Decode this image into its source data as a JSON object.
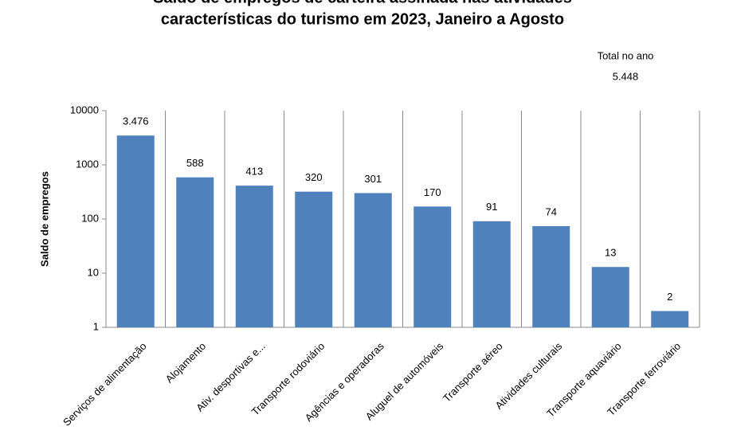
{
  "chart_data": {
    "type": "bar",
    "title": [
      "Saldo de empregos de carteira assinada nas atividades",
      "características do turismo em 2023, Janeiro a Agosto"
    ],
    "annotation": [
      "Total no ano",
      "5.448"
    ],
    "y_label": "Saldo de empregos",
    "categories": [
      "Serviços de alimentação",
      "Alojamento",
      "Ativ. desportivas e...",
      "Transporte rodoviário",
      "Agências e operadoras",
      "Aluguel de automóveis",
      "Transporte aéreo",
      "Atividades culturais",
      "Transporte aquaviário",
      "Transporte ferroviário"
    ],
    "values": [
      3476,
      588,
      413,
      320,
      301,
      170,
      91,
      74,
      13,
      2
    ],
    "value_labels": [
      "3.476",
      "588",
      "413",
      "320",
      "301",
      "170",
      "91",
      "74",
      "13",
      "2"
    ],
    "color": "#4f81bd",
    "ylim": [
      1,
      10000
    ],
    "yticks": [
      1,
      10,
      100,
      1000,
      10000
    ],
    "log_scale": true,
    "grid": "x"
  }
}
